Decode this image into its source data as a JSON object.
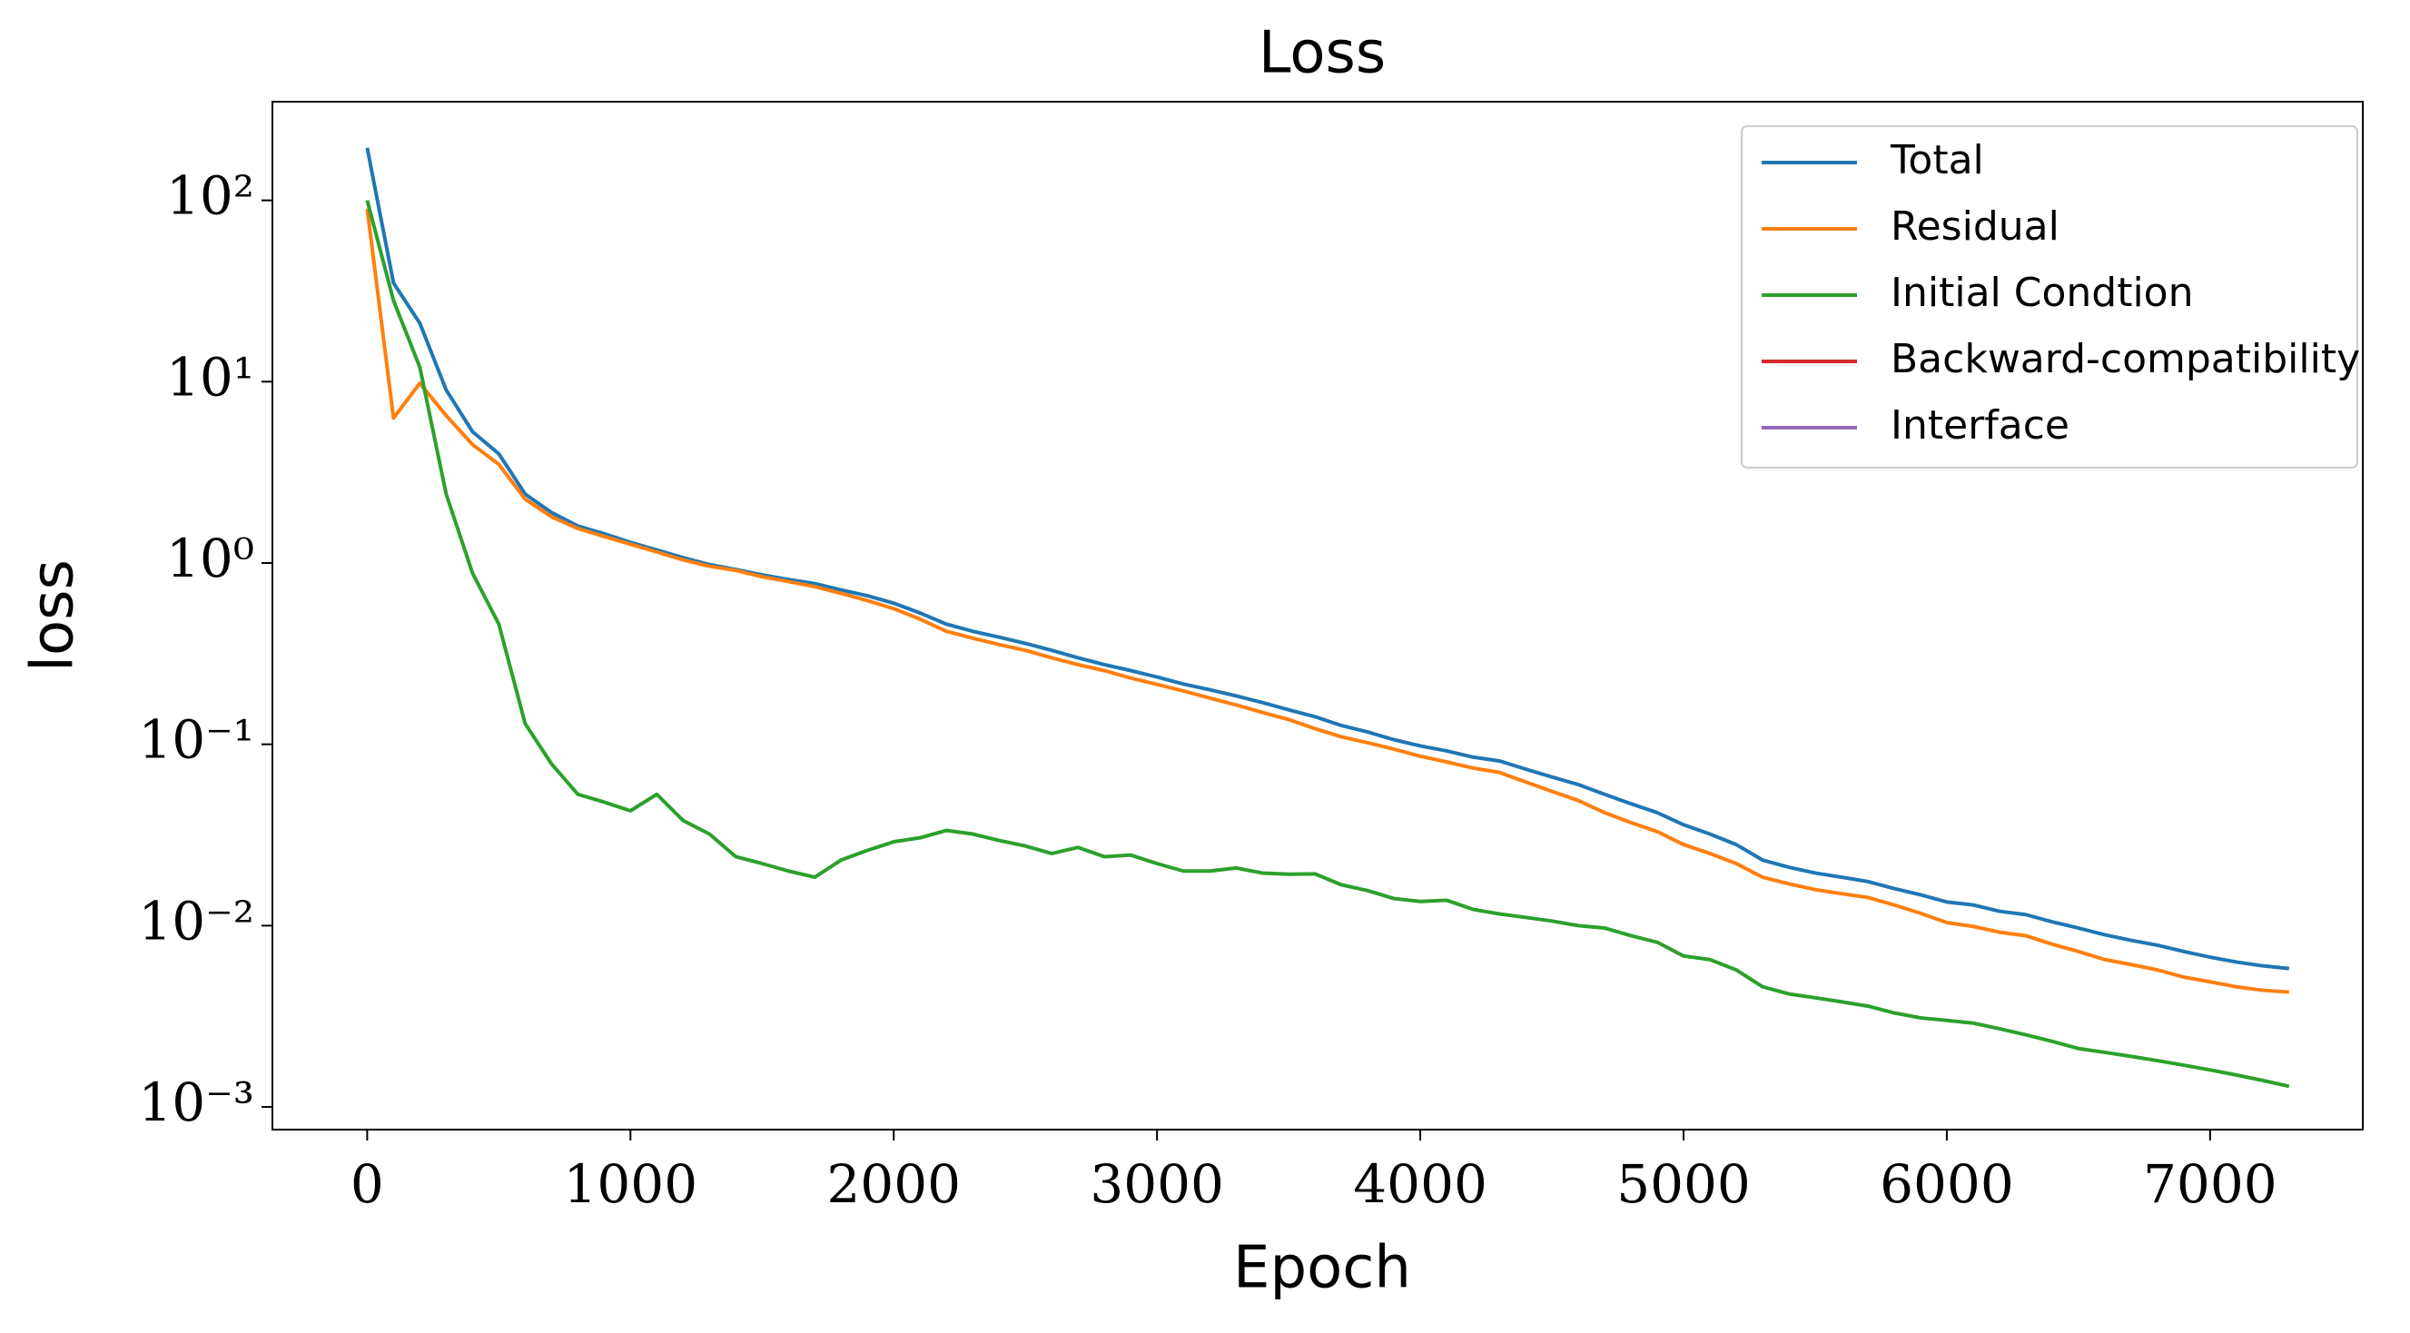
{
  "chart_data": {
    "type": "line",
    "title": "Loss",
    "x_label": "Epoch",
    "y_label": "loss",
    "log_y": true,
    "legend": "upper right",
    "x": [
      0,
      100,
      200,
      300,
      400,
      500,
      600,
      700,
      800,
      900,
      1000,
      1100,
      1200,
      1300,
      1400,
      1500,
      1600,
      1700,
      1800,
      1900,
      2000,
      2100,
      2200,
      2300,
      2400,
      2500,
      2600,
      2700,
      2800,
      2900,
      3000,
      3100,
      3200,
      3300,
      3400,
      3500,
      3600,
      3700,
      3800,
      3900,
      4000,
      4100,
      4200,
      4300,
      4400,
      4500,
      4600,
      4700,
      4800,
      4900,
      5000,
      5100,
      5200,
      5300,
      5400,
      5500,
      5600,
      5700,
      5800,
      5900,
      6000,
      6100,
      6200,
      6300,
      6400,
      6500,
      6600,
      6700,
      6800,
      6900,
      7000,
      7100,
      7200,
      7300
    ],
    "series": [
      {
        "name": "Total",
        "color": "#1f77b4",
        "values": [
          195,
          35,
          21,
          9,
          5.3,
          4,
          2.4,
          1.9,
          1.6,
          1.45,
          1.3,
          1.18,
          1.07,
          0.98,
          0.92,
          0.86,
          0.81,
          0.77,
          0.71,
          0.66,
          0.6,
          0.53,
          0.46,
          0.42,
          0.39,
          0.36,
          0.33,
          0.3,
          0.275,
          0.255,
          0.235,
          0.215,
          0.2,
          0.185,
          0.17,
          0.155,
          0.142,
          0.127,
          0.117,
          0.106,
          0.098,
          0.092,
          0.085,
          0.081,
          0.073,
          0.066,
          0.06,
          0.053,
          0.047,
          0.042,
          0.036,
          0.032,
          0.028,
          0.023,
          0.021,
          0.0195,
          0.0185,
          0.0175,
          0.016,
          0.0148,
          0.0135,
          0.013,
          0.012,
          0.0115,
          0.0105,
          0.0097,
          0.0089,
          0.0083,
          0.0078,
          0.0072,
          0.0067,
          0.0063,
          0.006,
          0.0058
        ]
      },
      {
        "name": "Residual",
        "color": "#ff7f0e",
        "values": [
          90,
          6.3,
          9.8,
          6.5,
          4.5,
          3.5,
          2.25,
          1.8,
          1.55,
          1.4,
          1.27,
          1.15,
          1.04,
          0.96,
          0.91,
          0.84,
          0.79,
          0.74,
          0.68,
          0.62,
          0.56,
          0.49,
          0.42,
          0.385,
          0.355,
          0.33,
          0.3,
          0.275,
          0.255,
          0.232,
          0.214,
          0.197,
          0.18,
          0.165,
          0.15,
          0.137,
          0.122,
          0.11,
          0.102,
          0.094,
          0.086,
          0.08,
          0.074,
          0.07,
          0.062,
          0.055,
          0.049,
          0.042,
          0.037,
          0.033,
          0.028,
          0.025,
          0.022,
          0.0185,
          0.017,
          0.0158,
          0.015,
          0.0143,
          0.013,
          0.0117,
          0.0104,
          0.0099,
          0.0092,
          0.0088,
          0.0079,
          0.0072,
          0.0065,
          0.0061,
          0.0057,
          0.0052,
          0.0049,
          0.0046,
          0.0044,
          0.0043
        ]
      },
      {
        "name": "Initial Condtion",
        "color": "#2ca02c",
        "values": [
          100,
          28,
          12,
          2.4,
          0.88,
          0.46,
          0.13,
          0.078,
          0.053,
          0.048,
          0.043,
          0.053,
          0.038,
          0.032,
          0.024,
          0.022,
          0.02,
          0.0185,
          0.023,
          0.026,
          0.029,
          0.0305,
          0.0335,
          0.032,
          0.0295,
          0.0275,
          0.025,
          0.027,
          0.024,
          0.0245,
          0.022,
          0.02,
          0.02,
          0.0208,
          0.0195,
          0.0192,
          0.0193,
          0.0168,
          0.0156,
          0.0141,
          0.0136,
          0.0138,
          0.0123,
          0.0116,
          0.0111,
          0.0106,
          0.01,
          0.0097,
          0.0088,
          0.0081,
          0.0068,
          0.0065,
          0.0057,
          0.0046,
          0.0042,
          0.004,
          0.0038,
          0.0036,
          0.0033,
          0.0031,
          0.003,
          0.0029,
          0.0027,
          0.0025,
          0.0023,
          0.0021,
          0.002,
          0.0019,
          0.0018,
          0.0017,
          0.0016,
          0.0015,
          0.0014,
          0.0013
        ]
      },
      {
        "name": "Backward-compatibility",
        "color": "#d62728",
        "values": [
          null,
          null,
          null,
          null,
          null,
          null,
          null,
          null,
          null,
          null,
          null,
          null,
          null,
          null,
          null,
          null,
          null,
          null,
          null,
          null,
          null,
          null,
          null,
          null,
          null,
          null,
          null,
          null,
          null,
          null,
          null,
          null,
          null,
          null,
          null,
          null,
          null,
          null,
          null,
          null,
          null,
          null,
          null,
          null,
          null,
          null,
          null,
          null,
          null,
          null,
          null,
          null,
          null,
          null,
          null,
          null,
          null,
          null,
          null,
          null,
          null,
          null,
          null,
          null,
          null,
          null,
          null,
          null,
          null,
          null,
          null,
          null,
          null,
          null
        ]
      },
      {
        "name": "Interface",
        "color": "#9467bd",
        "values": [
          null,
          null,
          null,
          null,
          null,
          null,
          null,
          null,
          null,
          null,
          null,
          null,
          null,
          null,
          null,
          null,
          null,
          null,
          null,
          null,
          null,
          null,
          null,
          null,
          null,
          null,
          null,
          null,
          null,
          null,
          null,
          null,
          null,
          null,
          null,
          null,
          null,
          null,
          null,
          null,
          null,
          null,
          null,
          null,
          null,
          null,
          null,
          null,
          null,
          null,
          null,
          null,
          null,
          null,
          null,
          null,
          null,
          null,
          null,
          null,
          null,
          null,
          null,
          null,
          null,
          null,
          null,
          null,
          null,
          null,
          null,
          null,
          null,
          null
        ]
      }
    ],
    "xlim": [
      -360,
      7580
    ],
    "xticks": [
      0,
      1000,
      2000,
      3000,
      4000,
      5000,
      6000,
      7000
    ],
    "ylim": [
      0.00075,
      350
    ],
    "yticks": [
      {
        "value": 0.001,
        "label": "10⁻³"
      },
      {
        "value": 0.01,
        "label": "10⁻²"
      },
      {
        "value": 0.1,
        "label": "10⁻¹"
      },
      {
        "value": 1,
        "label": "10⁰"
      },
      {
        "value": 10,
        "label": "10¹"
      },
      {
        "value": 100,
        "label": "10²"
      }
    ]
  }
}
